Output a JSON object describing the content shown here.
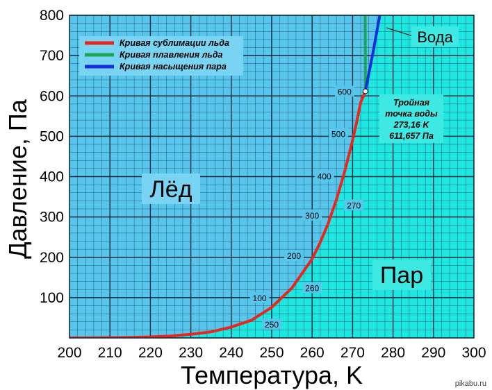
{
  "chart_data": {
    "type": "line",
    "title": "",
    "xlabel": "Температура, K",
    "ylabel": "Давление, Па",
    "xlim": [
      200,
      300
    ],
    "ylim": [
      0,
      800
    ],
    "x_ticks": [
      "200",
      "210",
      "220",
      "230",
      "240",
      "250",
      "260",
      "270",
      "280",
      "290",
      "300"
    ],
    "y_ticks": [
      "100",
      "200",
      "300",
      "400",
      "500",
      "600",
      "700",
      "800"
    ],
    "grid": true,
    "legend_position": "top-left",
    "series": [
      {
        "name": "Кривая сублимации льда",
        "color": "#e8261e",
        "x": [
          200,
          205,
          210,
          215,
          220,
          225,
          230,
          235,
          240,
          245,
          250,
          255,
          260,
          262,
          264,
          266,
          268,
          270,
          271,
          272,
          273.16
        ],
        "y": [
          0.16,
          0.3,
          0.7,
          1.3,
          2.6,
          4.8,
          9,
          15,
          27,
          44,
          76,
          124,
          196,
          237,
          285,
          343,
          411,
          490,
          535,
          584,
          611.657
        ]
      },
      {
        "name": "Кривая плавления льда",
        "color": "#1ea35a",
        "x": [
          273.16,
          273.14,
          273.12,
          273.1
        ],
        "y": [
          611.657,
          700,
          760,
          800
        ]
      },
      {
        "name": "Кривая насыщения пара",
        "color": "#1530d8",
        "x": [
          273.16,
          274,
          275,
          276,
          277
        ],
        "y": [
          611.657,
          655,
          705,
          760,
          815
        ]
      }
    ],
    "curve_markers": [
      {
        "label": "600",
        "x": 268,
        "y": 610
      },
      {
        "label": "500",
        "x": 266.5,
        "y": 505
      },
      {
        "label": "400",
        "x": 263,
        "y": 400
      },
      {
        "label": "300",
        "x": 260,
        "y": 303
      },
      {
        "label": "200",
        "x": 255.5,
        "y": 203
      },
      {
        "label": "100",
        "x": 247,
        "y": 98
      },
      {
        "label": "270",
        "x": 270.3,
        "y": 328
      },
      {
        "label": "260",
        "x": 260,
        "y": 123
      },
      {
        "label": "250",
        "x": 250,
        "y": 33
      }
    ],
    "annotations": {
      "ice": "Лёд",
      "vapor": "Пар",
      "water": "Вода",
      "triple_point": [
        "Тройная",
        "точка воды",
        "273,16 K",
        "611,657 Па"
      ]
    },
    "colors": {
      "ice_region": "#58c6ec",
      "vapor_region": "#1ee6e0",
      "grid_major": "#0a2a3a",
      "grid_minor": "#1f5a6e"
    }
  },
  "watermark": "pikabu.ru"
}
